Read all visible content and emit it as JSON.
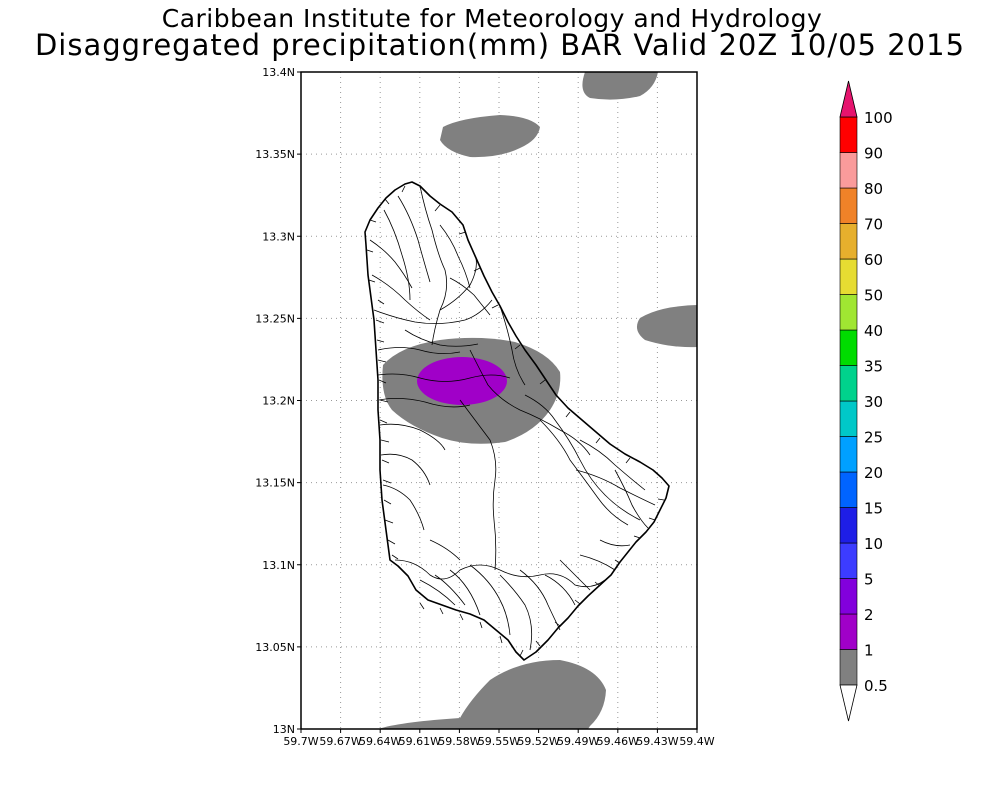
{
  "title_line1": "Caribbean Institute for Meteorology and Hydrology",
  "title_line2": "Disaggregated precipitation(mm) BAR Valid 20Z 10/05 2015",
  "axes": {
    "lon_labels": [
      "59.7W",
      "59.67W",
      "59.64W",
      "59.61W",
      "59.58W",
      "59.55W",
      "59.52W",
      "59.49W",
      "59.46W",
      "59.43W",
      "59.4W"
    ],
    "lat_labels": [
      "13.4N",
      "13.35N",
      "13.3N",
      "13.25N",
      "13.2N",
      "13.15N",
      "13.1N",
      "13.05N",
      "13N"
    ],
    "lon_range": [
      -59.7,
      -59.4
    ],
    "lat_range": [
      13.0,
      13.4
    ],
    "grid": true
  },
  "colorbar": {
    "levels": [
      "0.5",
      "1",
      "2",
      "5",
      "10",
      "15",
      "20",
      "25",
      "30",
      "35",
      "40",
      "50",
      "60",
      "70",
      "80",
      "90",
      "100"
    ],
    "colors": [
      "#808080",
      "#a000c8",
      "#8200dc",
      "#3c3cff",
      "#1e1ee6",
      "#0064ff",
      "#00a0ff",
      "#00c8c8",
      "#00d28c",
      "#00dc00",
      "#a0e632",
      "#e6dc32",
      "#e6af2d",
      "#f08228",
      "#fa9b9b",
      "#ff0000",
      "#f03c50",
      "#e6146e"
    ],
    "below_color": "#ffffff",
    "above_color": "#e6146e"
  },
  "map_layers": {
    "land_outline": "Barbados",
    "precip_colors": {
      "light": "#808080",
      "medium": "#a000c8"
    }
  }
}
